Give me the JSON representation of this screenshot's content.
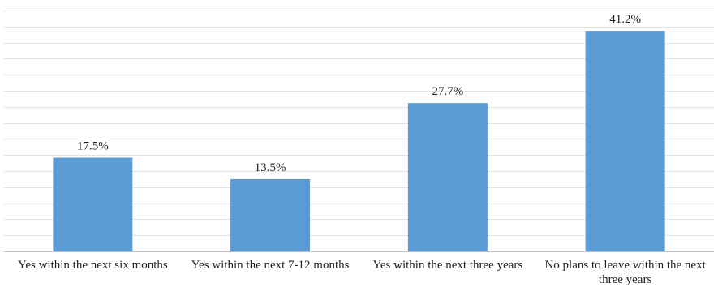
{
  "chart_data": {
    "type": "bar",
    "categories": [
      "Yes within the next six months",
      "Yes within the next 7-12 months",
      "Yes within the next three years",
      "No plans to leave within the next three years"
    ],
    "values": [
      17.5,
      13.5,
      27.7,
      41.2
    ],
    "data_labels": [
      "17.5%",
      "13.5%",
      "27.7%",
      "41.2%"
    ],
    "title": "",
    "xlabel": "",
    "ylabel": "",
    "ylim": [
      0,
      45
    ],
    "grid": true,
    "legend": "none",
    "bar_color": "#5b9bd5",
    "gridline_color": "#e3e3e3",
    "axis_color": "#bfbfbf"
  }
}
